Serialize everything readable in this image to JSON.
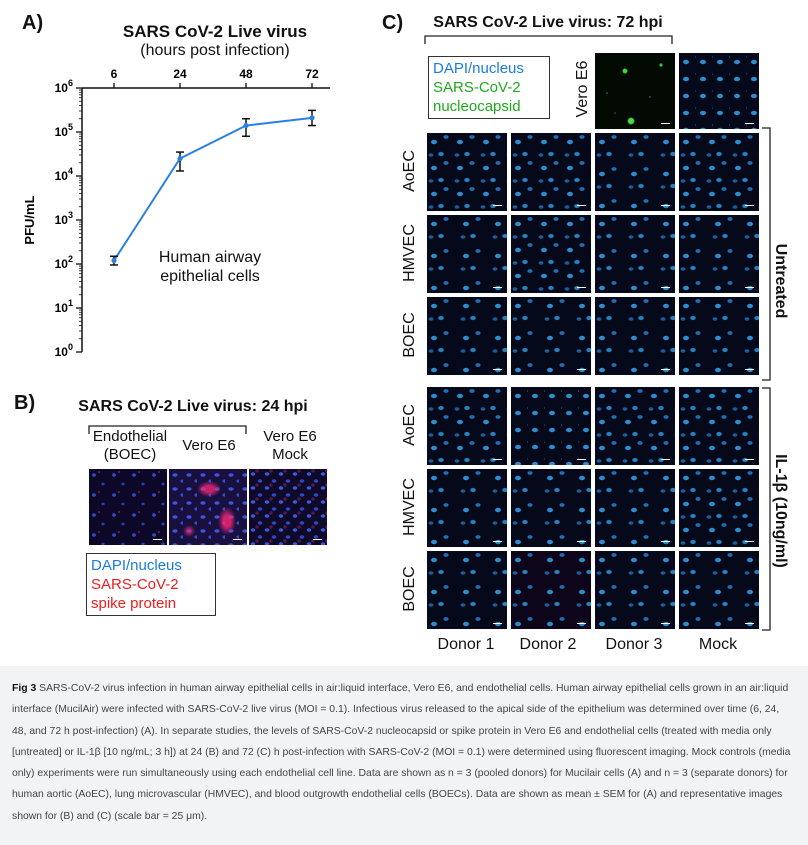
{
  "panelA": {
    "label": "A)",
    "title": "SARS CoV-2 Live virus",
    "subtitle": "(hours post infection)",
    "annotation_line1": "Human airway",
    "annotation_line2": "epithelial cells",
    "chart_data": {
      "type": "line",
      "title": "SARS CoV-2 Live virus (hours post infection)",
      "xlabel": "hours post infection",
      "ylabel": "PFU/mL",
      "yscale": "log10",
      "x_ticks": [
        "6",
        "24",
        "48",
        "72"
      ],
      "y_ticks": [
        "10^6",
        "10^5",
        "10^4",
        "10^3",
        "10^2",
        "10^1",
        "10^0"
      ],
      "ylim": [
        1,
        1000000
      ],
      "series": [
        {
          "name": "Human airway epithelial cells",
          "color": "#2b7fe0",
          "x": [
            6,
            24,
            48,
            72
          ],
          "values": [
            120,
            25000,
            140000,
            210000
          ],
          "err_low": [
            95,
            13000,
            80000,
            140000
          ],
          "err_high": [
            150,
            35000,
            200000,
            310000
          ]
        }
      ]
    }
  },
  "panelB": {
    "label": "B)",
    "title": "SARS CoV-2 Live virus: 24 hpi",
    "col1_line1": "Endothelial",
    "col1_line2": "(BOEC)",
    "col2": "Vero E6",
    "col3_line1": "Vero E6",
    "col3_line2": "Mock",
    "legend1": "DAPI/nucleus",
    "legend2": "SARS-CoV-2",
    "legend3": "spike protein",
    "color_blue": "#1a7ce0",
    "color_red": "#ee1c1c"
  },
  "panelC": {
    "label": "C)",
    "title": "SARS CoV-2 Live virus: 72 hpi",
    "legend1": "DAPI/nucleus",
    "legend2": "SARS-CoV-2",
    "legend3": "nucleocapsid",
    "vero_label": "Vero E6",
    "rows": [
      "AoEC",
      "HMVEC",
      "BOEC",
      "AoEC",
      "HMVEC",
      "BOEC"
    ],
    "group_untreated": "Untreated",
    "group_il1b": "IL-1β (10ng/ml)",
    "columns": [
      "Donor 1",
      "Donor 2",
      "Donor 3",
      "Mock"
    ],
    "color_green": "#1ea81e"
  },
  "caption": {
    "fig_label": "Fig 3",
    "text": "SARS-CoV-2 virus infection in human airway epithelial cells in air:liquid interface, Vero E6, and endothelial cells. Human airway epithelial cells grown in an air:liquid interface (MucilAir) were infected with SARS-CoV-2 live virus (MOI = 0.1). Infectious virus released to the apical side of the epithelium was determined over time (6, 24, 48, and 72 h post-infection) (A). In separate studies, the levels of SARS-CoV-2 nucleocapsid or spike protein in Vero E6 and endothelial cells (treated with media only [untreated] or IL-1β [10 ng/mL; 3 h]) at 24 (B) and 72 (C) h post-infection with SARS-CoV-2 (MOI = 0.1) were determined using fluorescent imaging. Mock controls (media only) experiments were run simultaneously using each endothelial cell line. Data are shown as n = 3 (pooled donors) for Mucilair cells (A) and n = 3 (separate donors) for human aortic (AoEC), lung microvascular (HMVEC), and blood outgrowth endothelial cells (BOECs). Data are shown as mean ± SEM for (A) and representative images shown for (B) and (C) (scale bar = 25 μm)."
  }
}
